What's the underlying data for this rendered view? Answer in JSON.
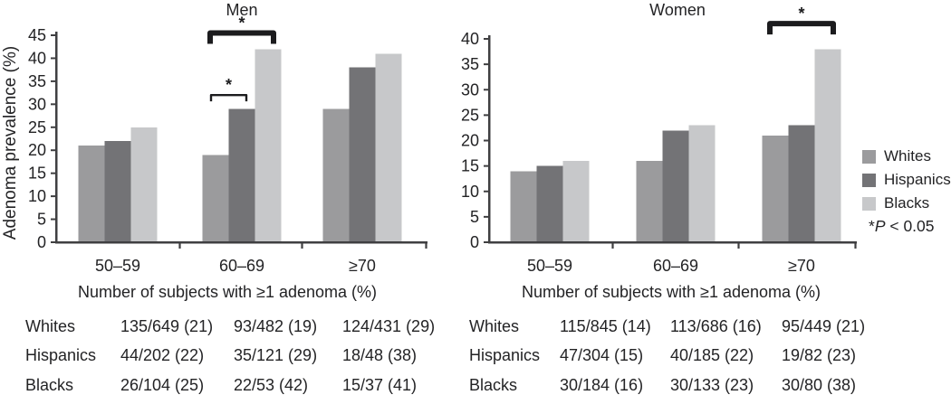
{
  "figure": {
    "significance_note": {
      "star": "*",
      "symbol": "P",
      "rest": " < 0.05"
    }
  },
  "chart_data": [
    {
      "type": "bar",
      "title": "Men",
      "ylabel": "Adenoma prevalence (%)",
      "xlabel": "",
      "ylim": [
        0,
        45
      ],
      "ytick_step": 5,
      "grid": false,
      "categories": [
        "50–59",
        "60–69",
        "≥70"
      ],
      "series": [
        {
          "name": "Whites",
          "color": "#9b9b9d",
          "values": [
            21,
            19,
            29
          ]
        },
        {
          "name": "Hispanics",
          "color": "#737376",
          "values": [
            22,
            29,
            38
          ]
        },
        {
          "name": "Blacks",
          "color": "#c7c8ca",
          "values": [
            25,
            42,
            41
          ]
        }
      ],
      "significance_brackets": [
        {
          "category": "60–69",
          "between": [
            "Whites",
            "Blacks"
          ],
          "label": "*",
          "y_value": 45.5,
          "weight": "thick"
        },
        {
          "category": "60–69",
          "between": [
            "Whites",
            "Hispanics"
          ],
          "label": "*",
          "y_value": 32,
          "weight": "thin"
        }
      ],
      "table_caption": "Number of subjects with ≥1 adenoma (%)",
      "table": {
        "rows": [
          {
            "label": "Whites",
            "cells": [
              "135/649 (21)",
              "93/482 (19)",
              "124/431 (29)"
            ]
          },
          {
            "label": "Hispanics",
            "cells": [
              "44/202 (22)",
              "35/121 (29)",
              "18/48 (38)"
            ]
          },
          {
            "label": "Blacks",
            "cells": [
              "26/104 (25)",
              "22/53 (42)",
              "15/37 (41)"
            ]
          }
        ]
      }
    },
    {
      "type": "bar",
      "title": "Women",
      "ylabel": "",
      "xlabel": "",
      "ylim": [
        0,
        40
      ],
      "ytick_step": 5,
      "grid": false,
      "categories": [
        "50–59",
        "60–69",
        "≥70"
      ],
      "series": [
        {
          "name": "Whites",
          "color": "#9b9b9d",
          "values": [
            14,
            16,
            21
          ]
        },
        {
          "name": "Hispanics",
          "color": "#737376",
          "values": [
            15,
            22,
            23
          ]
        },
        {
          "name": "Blacks",
          "color": "#c7c8ca",
          "values": [
            16,
            23,
            38
          ]
        }
      ],
      "significance_brackets": [
        {
          "category": "≥70",
          "between": [
            "Whites",
            "Blacks"
          ],
          "label": "*",
          "y_value": 43,
          "weight": "thick"
        }
      ],
      "table_caption": "Number of subjects with ≥1 adenoma (%)",
      "table": {
        "rows": [
          {
            "label": "Whites",
            "cells": [
              "115/845 (14)",
              "113/686 (16)",
              "95/449 (21)"
            ]
          },
          {
            "label": "Hispanics",
            "cells": [
              "47/304 (15)",
              "40/185 (22)",
              "19/82 (23)"
            ]
          },
          {
            "label": "Blacks",
            "cells": [
              "30/184 (16)",
              "30/133 (23)",
              "30/80 (38)"
            ]
          }
        ]
      }
    }
  ],
  "legend": {
    "position": "right",
    "items": [
      "Whites",
      "Hispanics",
      "Blacks"
    ]
  }
}
